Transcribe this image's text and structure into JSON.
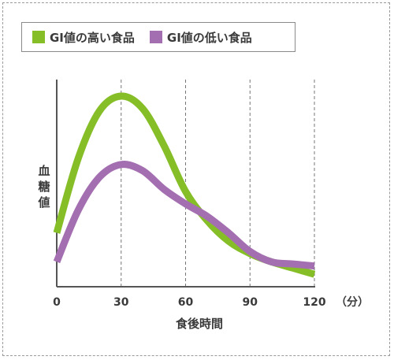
{
  "chart_data": {
    "type": "line",
    "xlabel": "食後時間",
    "ylabel": "血糖値",
    "x_unit": "（分）",
    "categories": [
      "0",
      "30",
      "60",
      "90",
      "120"
    ],
    "x": [
      0,
      30,
      60,
      90,
      120
    ],
    "xlim": [
      0,
      120
    ],
    "grid": "vertical dashed",
    "legend_position": "top-left",
    "series": [
      {
        "name": "GI値の高い食品",
        "color": "#86be27",
        "points": [
          [
            0,
            0.26
          ],
          [
            10,
            0.62
          ],
          [
            20,
            0.85
          ],
          [
            30,
            0.92
          ],
          [
            40,
            0.86
          ],
          [
            50,
            0.68
          ],
          [
            60,
            0.46
          ],
          [
            70,
            0.32
          ],
          [
            80,
            0.22
          ],
          [
            90,
            0.16
          ],
          [
            100,
            0.12
          ],
          [
            110,
            0.09
          ],
          [
            120,
            0.06
          ]
        ]
      },
      {
        "name": "GI値の低い食品",
        "color": "#a36fb0",
        "points": [
          [
            0,
            0.12
          ],
          [
            10,
            0.37
          ],
          [
            20,
            0.53
          ],
          [
            30,
            0.59
          ],
          [
            40,
            0.56
          ],
          [
            50,
            0.47
          ],
          [
            60,
            0.4
          ],
          [
            70,
            0.34
          ],
          [
            80,
            0.26
          ],
          [
            90,
            0.17
          ],
          [
            100,
            0.12
          ],
          [
            110,
            0.11
          ],
          [
            120,
            0.1
          ]
        ]
      }
    ]
  }
}
